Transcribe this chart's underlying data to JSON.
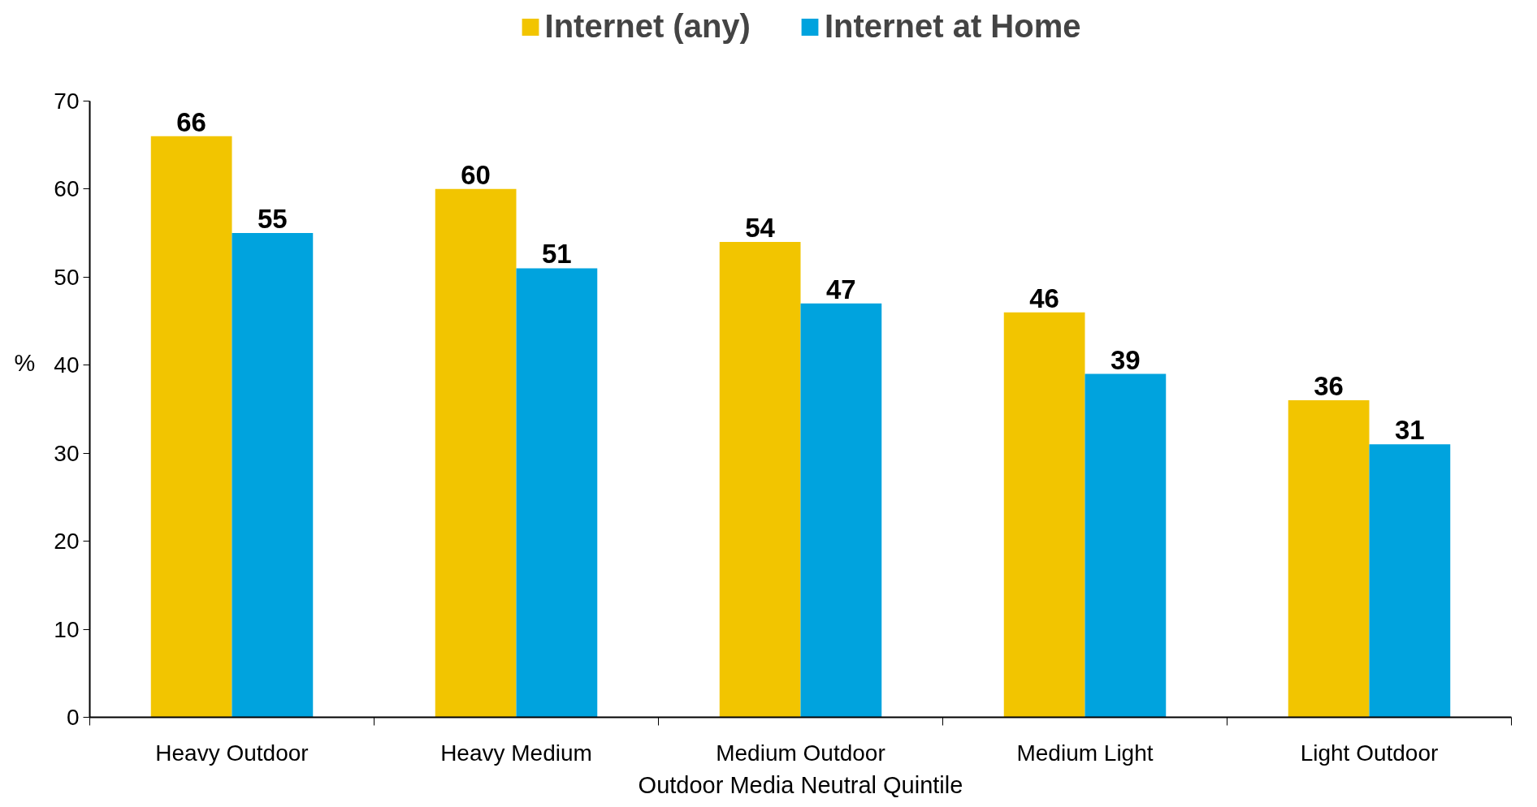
{
  "chart_data": {
    "type": "bar",
    "xlabel": "Outdoor Media Neutral Quintile",
    "ylabel": "%",
    "categories": [
      "Heavy Outdoor",
      "Heavy Medium",
      "Medium Outdoor",
      "Medium Light",
      "Light Outdoor"
    ],
    "series": [
      {
        "name": "Internet (any)",
        "color": "#f2c500",
        "values": [
          66,
          60,
          54,
          46,
          36
        ]
      },
      {
        "name": "Internet at Home",
        "color": "#00a3de",
        "values": [
          55,
          51,
          47,
          39,
          31
        ]
      }
    ],
    "ylim": [
      0,
      70
    ],
    "yticks": [
      0,
      10,
      20,
      30,
      40,
      50,
      60,
      70
    ],
    "grid": false,
    "legend": "top",
    "data_labels": true
  }
}
